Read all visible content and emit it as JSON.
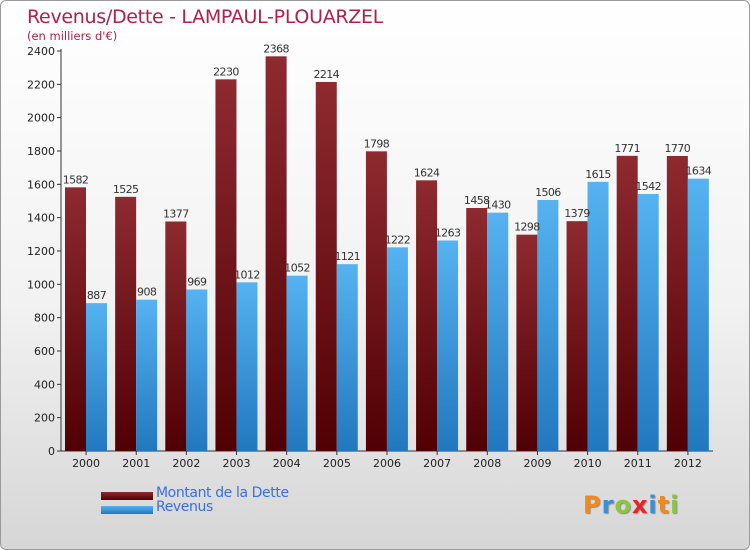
{
  "chart_data": {
    "type": "bar",
    "title": "Revenus/Dette - LAMPAUL-PLOUARZEL",
    "subtitle": "(en milliers d'€)",
    "categories": [
      "2000",
      "2001",
      "2002",
      "2003",
      "2004",
      "2005",
      "2006",
      "2007",
      "2008",
      "2009",
      "2010",
      "2011",
      "2012"
    ],
    "series": [
      {
        "name": "Montant de la Dette",
        "color": "#7a1418",
        "values": [
          1582,
          1525,
          1377,
          2230,
          2368,
          2214,
          1798,
          1624,
          1458,
          1298,
          1379,
          1771,
          1770
        ]
      },
      {
        "name": "Revenus",
        "color": "#3d9ce6",
        "values": [
          887,
          908,
          969,
          1012,
          1052,
          1121,
          1222,
          1263,
          1430,
          1506,
          1615,
          1542,
          1634
        ]
      }
    ],
    "ylim": [
      0,
      2400
    ],
    "yticks": [
      0,
      200,
      400,
      600,
      800,
      1000,
      1200,
      1400,
      1600,
      1800,
      2000,
      2200,
      2400
    ],
    "grid": false,
    "legend_position": "bottom-left"
  },
  "logo": {
    "text": "Proxiti",
    "letters": [
      {
        "ch": "P",
        "color": "#f08a1a"
      },
      {
        "ch": "r",
        "color": "#3a8fd8"
      },
      {
        "ch": "o",
        "color": "#8cc63e"
      },
      {
        "ch": "x",
        "color": "#e4252a"
      },
      {
        "ch": "i",
        "color": "#3a8fd8"
      },
      {
        "ch": "t",
        "color": "#f08a1a"
      },
      {
        "ch": "i",
        "color": "#8cc63e"
      }
    ]
  }
}
